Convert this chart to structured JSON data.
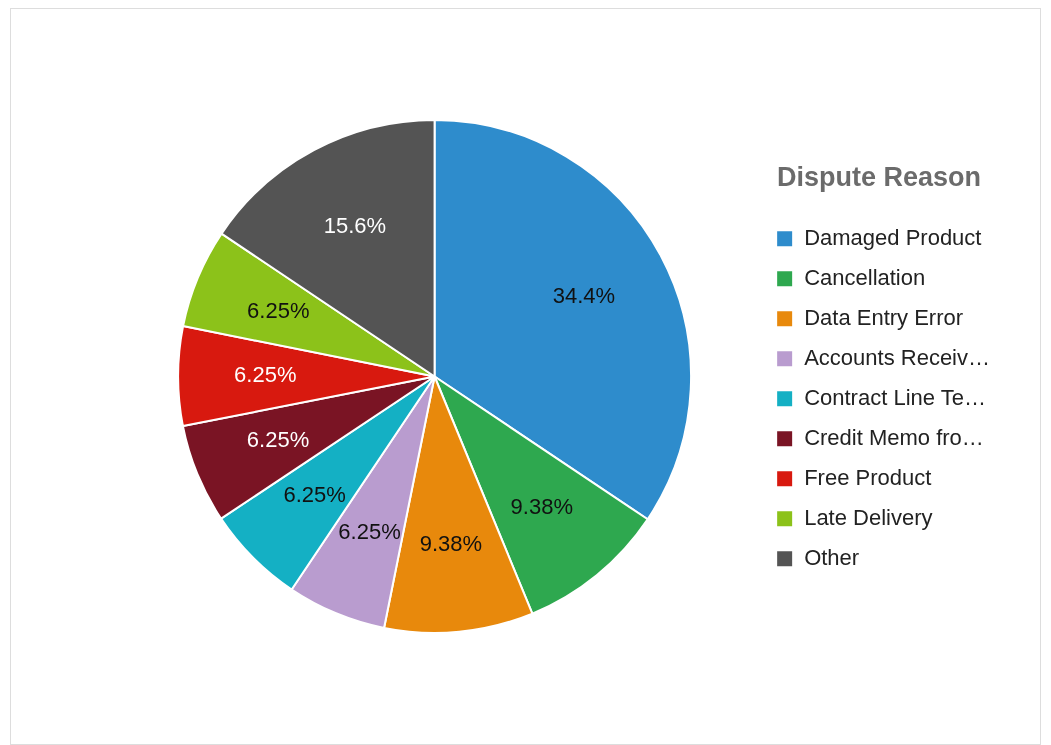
{
  "chart_data": {
    "type": "pie",
    "legend_title": "Dispute Reason",
    "legend": "right",
    "categories": [
      "Damaged Product",
      "Cancellation",
      "Data Entry Error",
      "Accounts Receiv…",
      "Contract Line Te…",
      "Credit Memo fro…",
      "Free Product",
      "Late Delivery",
      "Other"
    ],
    "values": [
      34.4,
      9.38,
      9.38,
      6.25,
      6.25,
      6.25,
      6.25,
      6.25,
      15.6
    ],
    "value_labels": [
      "34.4%",
      "9.38%",
      "9.38%",
      "6.25%",
      "6.25%",
      "6.25%",
      "6.25%",
      "6.25%",
      "15.6%"
    ],
    "colors": [
      "#2e8ccc",
      "#2ea84f",
      "#e8890c",
      "#b99ccf",
      "#14b0c4",
      "#7a1424",
      "#d8190f",
      "#8cc21a",
      "#545454"
    ]
  }
}
